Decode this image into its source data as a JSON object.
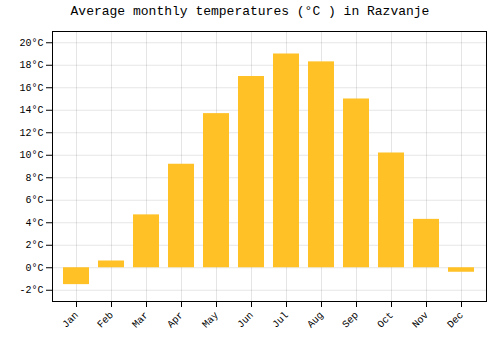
{
  "chart_data": {
    "type": "bar",
    "title": "Average monthly temperatures (°C ) in Razvanje",
    "categories": [
      "Jan",
      "Feb",
      "Mar",
      "Apr",
      "May",
      "Jun",
      "Jul",
      "Aug",
      "Sep",
      "Oct",
      "Nov",
      "Dec"
    ],
    "values": [
      -1.5,
      0.6,
      4.7,
      9.2,
      13.7,
      17.0,
      19.0,
      18.3,
      15.0,
      10.2,
      4.3,
      -0.4
    ],
    "color": "#FFC125",
    "ylim": [
      -3,
      21
    ],
    "yticks": [
      {
        "value": -2,
        "label": "-2°C"
      },
      {
        "value": 0,
        "label": "0°C"
      },
      {
        "value": 2,
        "label": "2°C"
      },
      {
        "value": 4,
        "label": "4°C"
      },
      {
        "value": 6,
        "label": "6°C"
      },
      {
        "value": 8,
        "label": "8°C"
      },
      {
        "value": 10,
        "label": "10°C"
      },
      {
        "value": 12,
        "label": "12°C"
      },
      {
        "value": 14,
        "label": "14°C"
      },
      {
        "value": 16,
        "label": "16°C"
      },
      {
        "value": 18,
        "label": "18°C"
      },
      {
        "value": 20,
        "label": "20°C"
      }
    ],
    "grid": true
  }
}
